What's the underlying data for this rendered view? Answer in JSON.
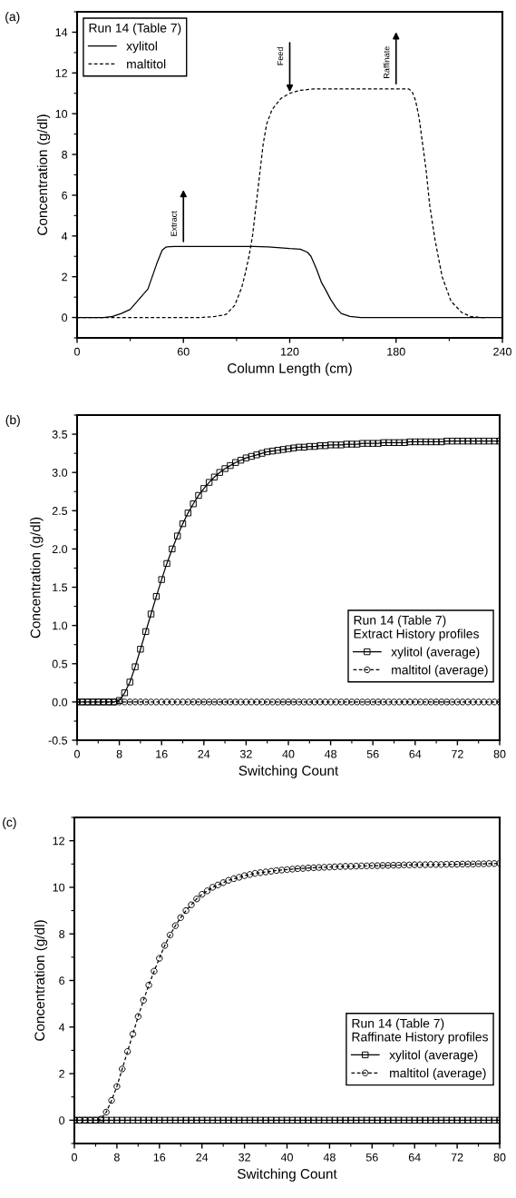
{
  "chart_data": [
    {
      "type": "line",
      "title": "(a)",
      "xlabel": "Column Length (cm)",
      "ylabel": "Concentration (g/dl)",
      "legend_title": "Run 14 (Table 7)",
      "legend": "top left",
      "xlim": [
        0,
        240
      ],
      "xticks": [
        0,
        60,
        120,
        180,
        240
      ],
      "ylim": [
        -1,
        15
      ],
      "yticks": [
        0,
        2,
        4,
        6,
        8,
        10,
        12,
        14
      ],
      "series": [
        {
          "name": "xylitol",
          "color": "#000000",
          "line_style": "solid",
          "marker": "none",
          "x": [
            0,
            15,
            20,
            25,
            30,
            35,
            40,
            45,
            48,
            50,
            52,
            55,
            80,
            100,
            108,
            115,
            120,
            126,
            130,
            132,
            135,
            138,
            140,
            143,
            146,
            149,
            154,
            160,
            240
          ],
          "values": [
            0,
            0,
            0.05,
            0.2,
            0.4,
            0.9,
            1.4,
            2.65,
            3.3,
            3.45,
            3.47,
            3.48,
            3.48,
            3.48,
            3.46,
            3.42,
            3.38,
            3.35,
            3.2,
            3.0,
            2.4,
            1.7,
            1.4,
            0.9,
            0.5,
            0.2,
            0.05,
            0,
            0
          ]
        },
        {
          "name": "maltitol",
          "color": "#000000",
          "line_style": "dashed",
          "marker": "none",
          "x": [
            0,
            70,
            78,
            84,
            89,
            93,
            95,
            97,
            99,
            101,
            103,
            105,
            107,
            110,
            115,
            120,
            126,
            134,
            160,
            187,
            189,
            191,
            193,
            195,
            197,
            199,
            202,
            206,
            211,
            217,
            222,
            228,
            231
          ],
          "values": [
            0,
            0,
            0.05,
            0.15,
            0.6,
            1.5,
            2.2,
            3.0,
            4.0,
            5.5,
            7.0,
            8.5,
            9.5,
            10.2,
            10.75,
            11.0,
            11.15,
            11.22,
            11.22,
            11.22,
            11.1,
            10.65,
            9.8,
            8.5,
            7.2,
            5.5,
            3.8,
            2.0,
            0.8,
            0.25,
            0.05,
            0,
            0
          ]
        }
      ],
      "annotations": [
        {
          "text": "Extract",
          "x": 60,
          "y": 3.48
        },
        {
          "text": "Feed",
          "x": 120,
          "y": 11.0
        },
        {
          "text": "Raffinate",
          "x": 180,
          "y": 11.22
        }
      ]
    },
    {
      "type": "line",
      "title": "(b)",
      "xlabel": "Switching Count",
      "ylabel": "Concentration (g/dl)",
      "legend_title": "Run 14 (Table 7)\nExtract History profiles",
      "legend": "bottom right",
      "xlim": [
        0,
        80
      ],
      "xticks": [
        0,
        8,
        16,
        24,
        32,
        40,
        48,
        56,
        64,
        72,
        80
      ],
      "ylim": [
        -0.5,
        3.75
      ],
      "yticks": [
        -0.5,
        {
          "value": 0,
          "label": "0.0"
        },
        0.5,
        {
          "value": 1,
          "label": "1.0"
        },
        1.5,
        {
          "value": 2,
          "label": "2.0"
        },
        2.5,
        {
          "value": 3,
          "label": "3.0"
        },
        3.5
      ],
      "x": [
        0,
        1,
        2,
        3,
        4,
        5,
        6,
        7,
        8,
        9,
        10,
        11,
        12,
        13,
        14,
        15,
        16,
        17,
        18,
        19,
        20,
        21,
        22,
        23,
        24,
        25,
        26,
        27,
        28,
        29,
        30,
        31,
        32,
        33,
        34,
        35,
        36,
        37,
        38,
        39,
        40,
        41,
        42,
        43,
        44,
        45,
        46,
        47,
        48,
        49,
        50,
        51,
        52,
        53,
        54,
        55,
        56,
        57,
        58,
        59,
        60,
        61,
        62,
        63,
        64,
        65,
        66,
        67,
        68,
        69,
        70,
        71,
        72,
        73,
        74,
        75,
        76,
        77,
        78,
        79,
        80
      ],
      "series": [
        {
          "name": "xylitol (average)",
          "color": "#000000",
          "line_style": "solid",
          "marker": "square",
          "values": [
            0,
            0,
            0,
            0,
            0,
            0,
            0,
            0,
            0.02,
            0.12,
            0.26,
            0.46,
            0.69,
            0.92,
            1.15,
            1.38,
            1.6,
            1.81,
            2.0,
            2.17,
            2.33,
            2.47,
            2.59,
            2.7,
            2.79,
            2.87,
            2.94,
            3.0,
            3.05,
            3.09,
            3.13,
            3.16,
            3.19,
            3.21,
            3.23,
            3.25,
            3.27,
            3.28,
            3.29,
            3.3,
            3.31,
            3.32,
            3.33,
            3.33,
            3.34,
            3.34,
            3.35,
            3.35,
            3.36,
            3.36,
            3.36,
            3.37,
            3.37,
            3.37,
            3.38,
            3.38,
            3.38,
            3.38,
            3.39,
            3.39,
            3.39,
            3.39,
            3.39,
            3.4,
            3.4,
            3.4,
            3.4,
            3.4,
            3.4,
            3.4,
            3.41,
            3.41,
            3.41,
            3.41,
            3.41,
            3.41,
            3.41,
            3.41,
            3.41,
            3.41,
            3.41
          ]
        },
        {
          "name": "maltitol (average)",
          "color": "#000000",
          "line_style": "dashed",
          "marker": "circle",
          "values": [
            0,
            0,
            0,
            0,
            0,
            0,
            0,
            0,
            0,
            0,
            0,
            0,
            0,
            0,
            0,
            0,
            0,
            0,
            0,
            0,
            0,
            0,
            0,
            0,
            0,
            0,
            0,
            0,
            0,
            0,
            0,
            0,
            0,
            0,
            0,
            0,
            0,
            0,
            0,
            0,
            0,
            0,
            0,
            0,
            0,
            0,
            0,
            0,
            0,
            0,
            0,
            0,
            0,
            0,
            0,
            0,
            0,
            0,
            0,
            0,
            0,
            0,
            0,
            0,
            0,
            0,
            0,
            0,
            0,
            0,
            0,
            0,
            0,
            0,
            0,
            0,
            0,
            0,
            0,
            0,
            0
          ]
        }
      ]
    },
    {
      "type": "line",
      "title": "(c)",
      "xlabel": "Switching Count",
      "ylabel": "Concentration (g/dl)",
      "legend_title": "Run 14 (Table 7)\nRaffinate History profiles",
      "legend": "bottom right",
      "xlim": [
        0,
        80
      ],
      "xticks": [
        0,
        8,
        16,
        24,
        32,
        40,
        48,
        56,
        64,
        72,
        80
      ],
      "ylim": [
        -1,
        13
      ],
      "yticks": [
        0,
        2,
        4,
        6,
        8,
        10,
        12
      ],
      "x": [
        0,
        1,
        2,
        3,
        4,
        5,
        6,
        7,
        8,
        9,
        10,
        11,
        12,
        13,
        14,
        15,
        16,
        17,
        18,
        19,
        20,
        21,
        22,
        23,
        24,
        25,
        26,
        27,
        28,
        29,
        30,
        31,
        32,
        33,
        34,
        35,
        36,
        37,
        38,
        39,
        40,
        41,
        42,
        43,
        44,
        45,
        46,
        47,
        48,
        49,
        50,
        51,
        52,
        53,
        54,
        55,
        56,
        57,
        58,
        59,
        60,
        61,
        62,
        63,
        64,
        65,
        66,
        67,
        68,
        69,
        70,
        71,
        72,
        73,
        74,
        75,
        76,
        77,
        78,
        79,
        80
      ],
      "series": [
        {
          "name": "xylitol (average)",
          "color": "#000000",
          "line_style": "solid",
          "marker": "square",
          "values": [
            0,
            0,
            0,
            0,
            0,
            0,
            0,
            0,
            0,
            0,
            0,
            0,
            0,
            0,
            0,
            0,
            0,
            0,
            0,
            0,
            0,
            0,
            0,
            0,
            0,
            0,
            0,
            0,
            0,
            0,
            0,
            0,
            0,
            0,
            0,
            0,
            0,
            0,
            0,
            0,
            0,
            0,
            0,
            0,
            0,
            0,
            0,
            0,
            0,
            0,
            0,
            0,
            0,
            0,
            0,
            0,
            0,
            0,
            0,
            0,
            0,
            0,
            0,
            0,
            0,
            0,
            0,
            0,
            0,
            0,
            0,
            0,
            0,
            0,
            0,
            0,
            0,
            0,
            0,
            0,
            0
          ]
        },
        {
          "name": "maltitol (average)",
          "color": "#000000",
          "line_style": "dashed",
          "marker": "circle",
          "values": [
            0,
            0,
            0,
            0,
            0,
            0.05,
            0.35,
            0.85,
            1.45,
            2.2,
            2.95,
            3.7,
            4.45,
            5.15,
            5.8,
            6.4,
            6.95,
            7.5,
            7.95,
            8.35,
            8.7,
            9.0,
            9.25,
            9.5,
            9.7,
            9.85,
            10.0,
            10.1,
            10.2,
            10.3,
            10.37,
            10.43,
            10.5,
            10.55,
            10.6,
            10.63,
            10.66,
            10.69,
            10.72,
            10.74,
            10.76,
            10.78,
            10.8,
            10.81,
            10.83,
            10.84,
            10.85,
            10.86,
            10.87,
            10.88,
            10.89,
            10.9,
            10.9,
            10.91,
            10.92,
            10.92,
            10.93,
            10.93,
            10.94,
            10.94,
            10.95,
            10.95,
            10.96,
            10.96,
            10.97,
            10.97,
            10.97,
            10.98,
            10.98,
            10.98,
            10.99,
            10.99,
            10.99,
            11.0,
            11.0,
            11.0,
            11.01,
            11.01,
            11.02,
            11.02,
            11.03
          ]
        }
      ]
    }
  ]
}
